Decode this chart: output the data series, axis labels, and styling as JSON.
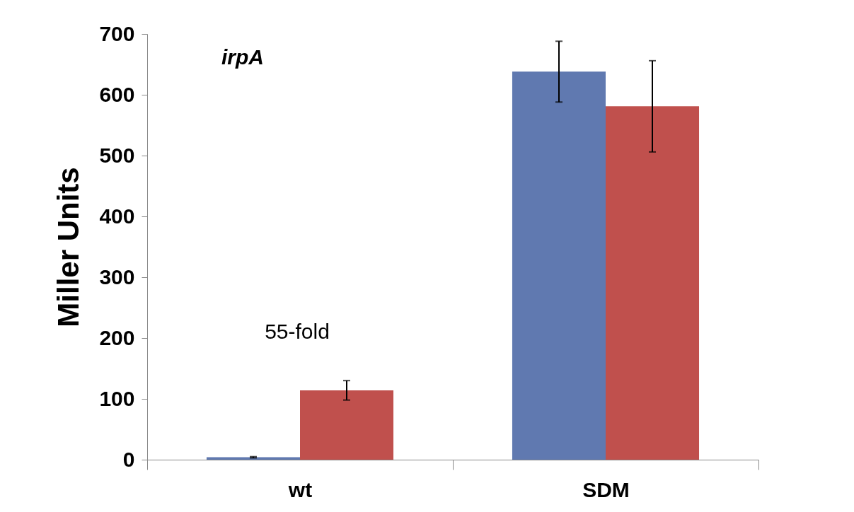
{
  "chart_data": {
    "type": "bar",
    "title": "irpA",
    "ylabel": "Miller Units",
    "categories": [
      "wt",
      "SDM"
    ],
    "series": [
      {
        "color": "#6079b0",
        "values": [
          4,
          638
        ],
        "errors": [
          1,
          50
        ]
      },
      {
        "color": "#c0504d",
        "values": [
          114,
          581
        ],
        "errors": [
          16,
          75
        ]
      }
    ],
    "ylim": [
      0,
      700
    ],
    "yticks": [
      0,
      100,
      200,
      300,
      400,
      500,
      600,
      700
    ],
    "grid": false,
    "legend": false,
    "annotations": [
      "55-fold"
    ]
  }
}
